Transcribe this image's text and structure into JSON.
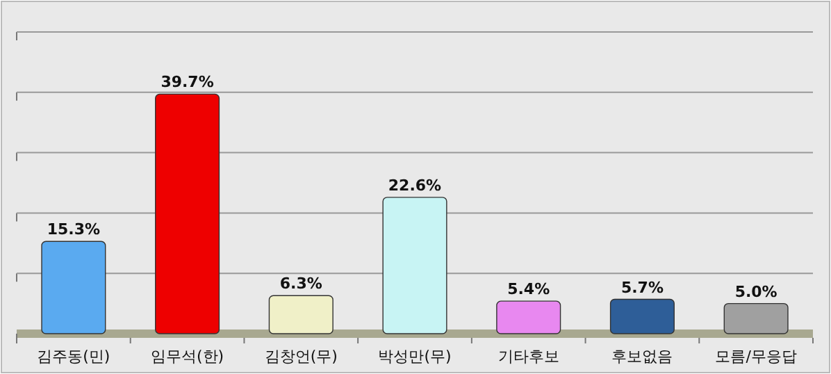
{
  "chart_data": {
    "type": "bar",
    "categories": [
      "김주동(민)",
      "임무석(한)",
      "김창언(무)",
      "박성만(무)",
      "기타후보",
      "후보없음",
      "모름/무응답"
    ],
    "values": [
      15.3,
      39.7,
      6.3,
      22.6,
      5.4,
      5.7,
      5.0
    ],
    "value_labels": [
      "15.3%",
      "39.7%",
      "6.3%",
      "22.6%",
      "5.4%",
      "5.7%",
      "5.0%"
    ],
    "colors": [
      "#5aaaf0",
      "#ee0000",
      "#f0f0c8",
      "#c8f4f4",
      "#e888f0",
      "#2e5e98",
      "#a0a0a0"
    ],
    "ylim": [
      0,
      50
    ],
    "yticks": [
      {
        "value": 10,
        "label": null
      },
      {
        "value": 20,
        "label": null
      },
      {
        "value": 30,
        "label": null
      },
      {
        "value": 40,
        "label": null
      },
      {
        "value": 50,
        "label": null
      }
    ],
    "grid": "y"
  }
}
